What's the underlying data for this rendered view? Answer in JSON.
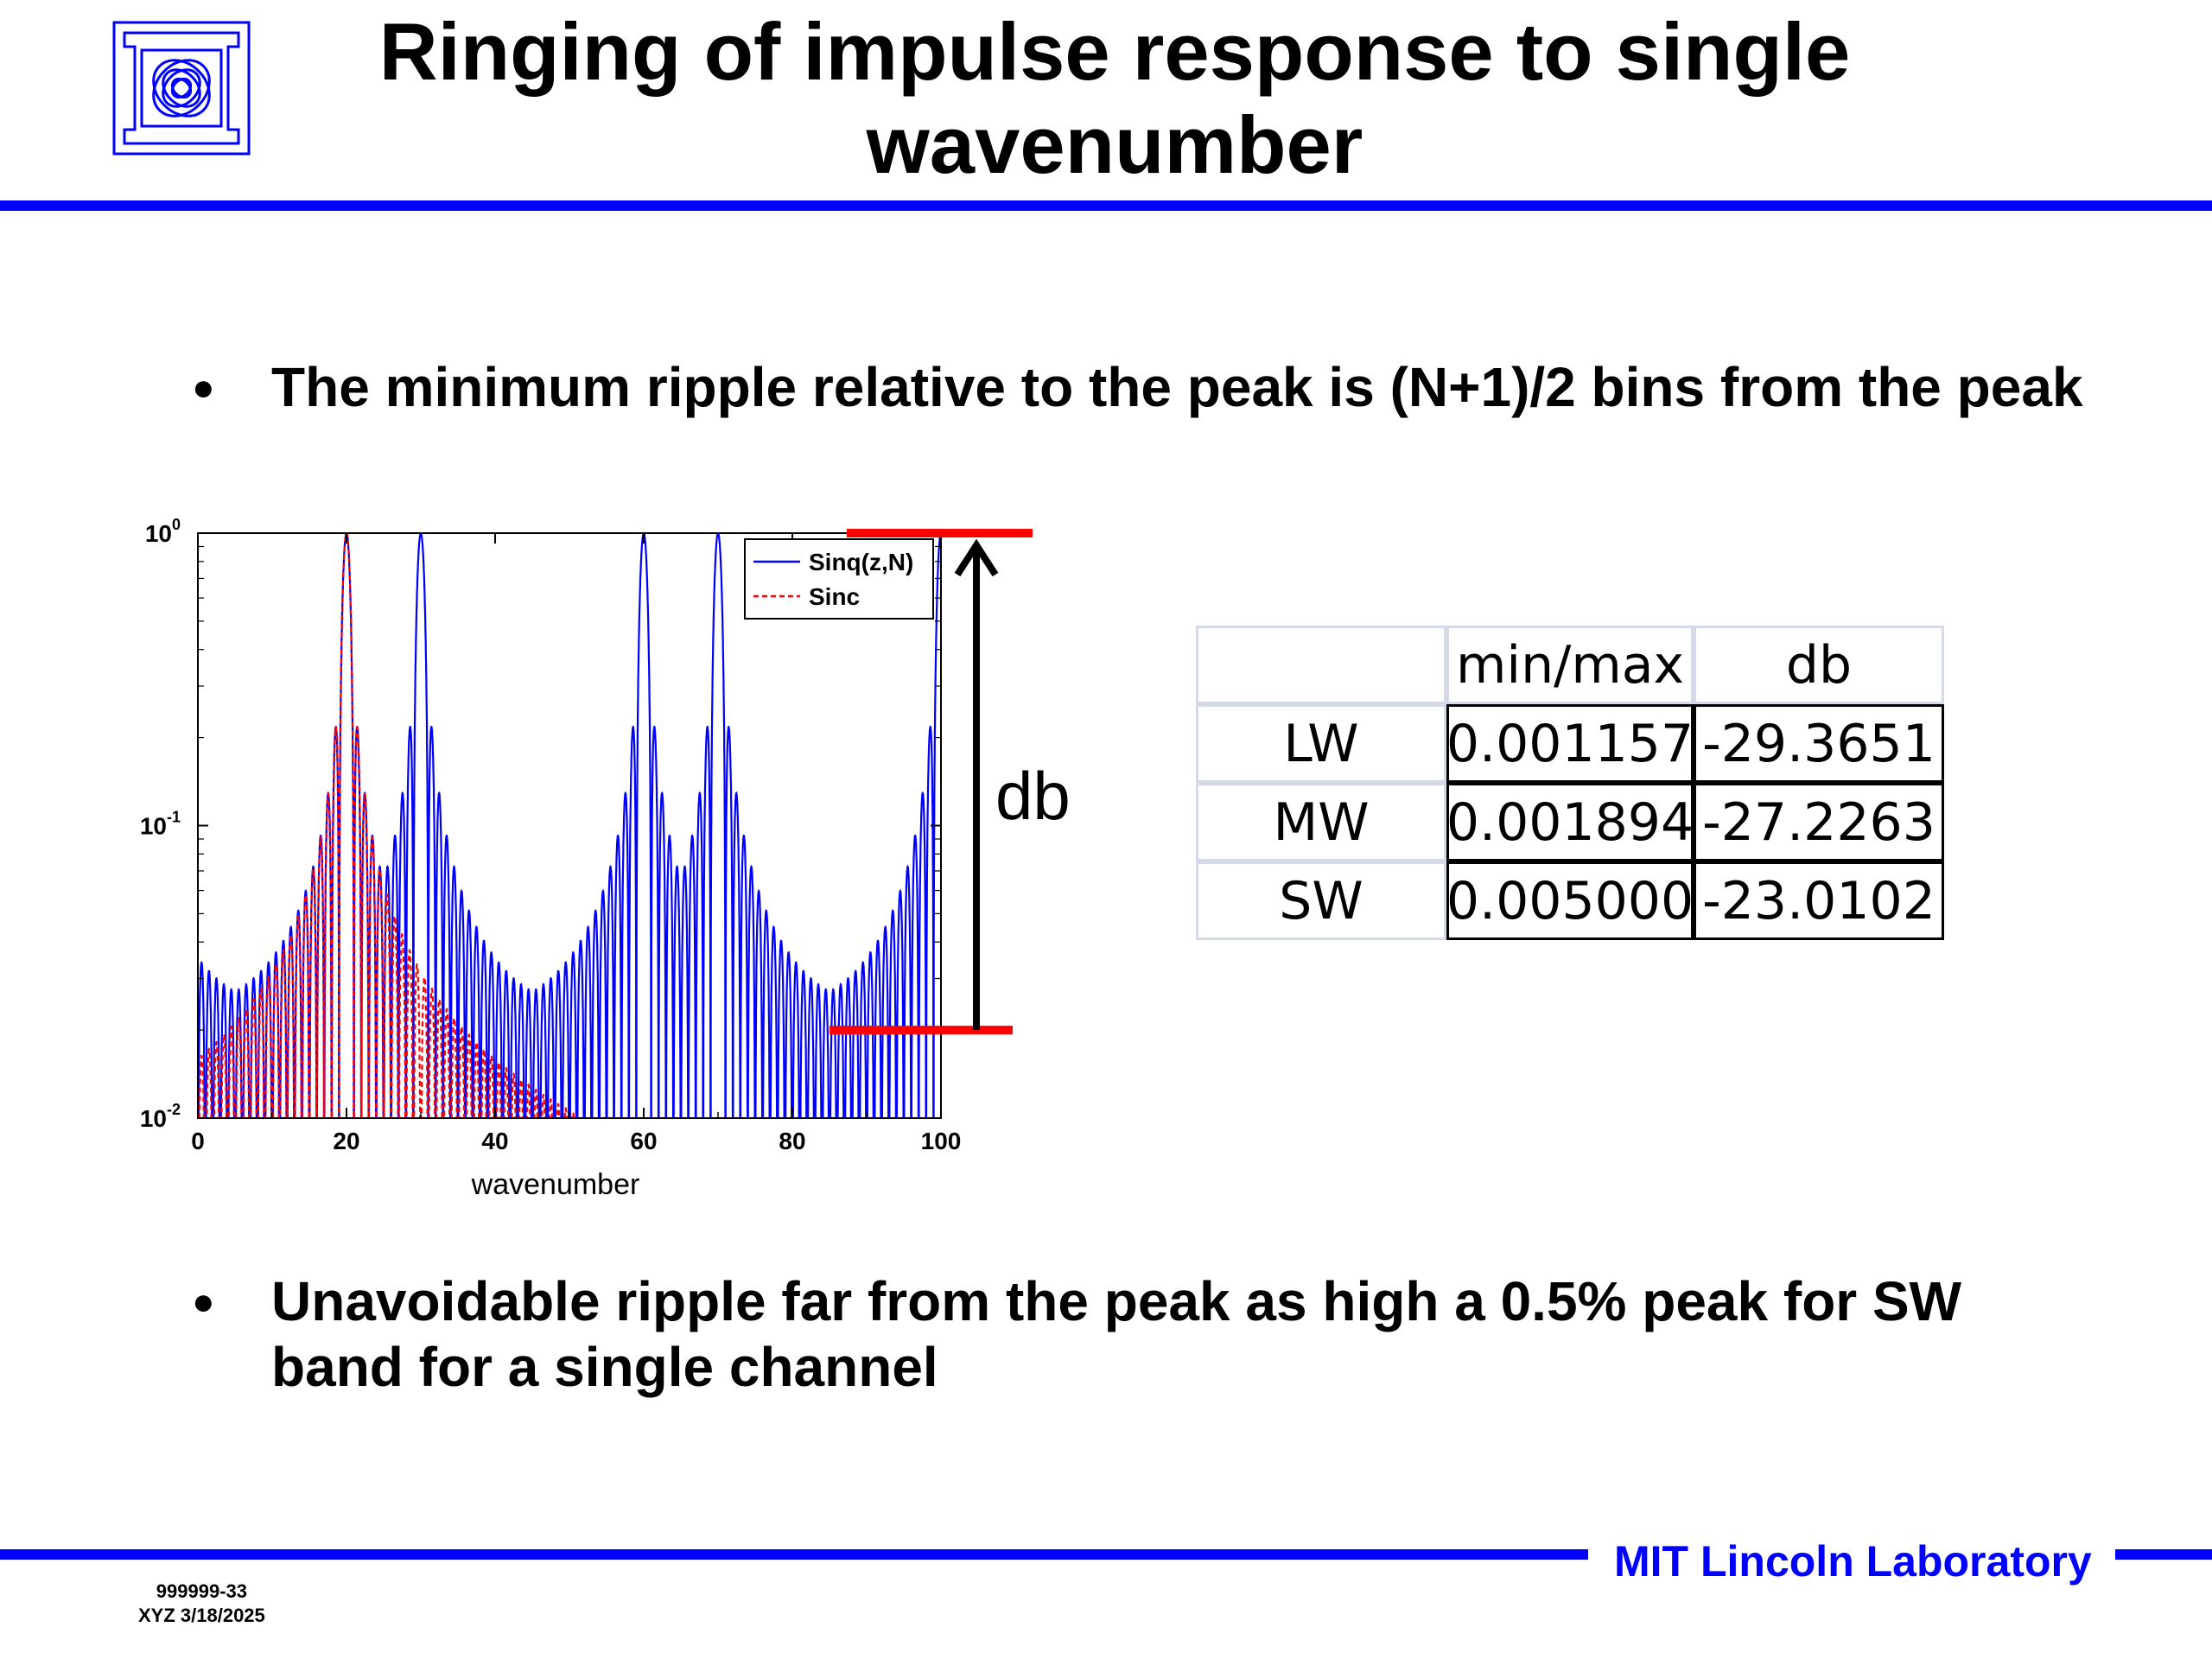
{
  "slide": {
    "title": "Ringing of impulse response to single wavenumber",
    "bullets": [
      "The minimum ripple relative to the peak is (N+1)/2 bins from the peak",
      "Unavoidable ripple far from the peak as high a 0.5% peak for SW band for a single channel"
    ],
    "annotation": "db",
    "footer": {
      "brand": "MIT Lincoln Laboratory",
      "id": "999999-33",
      "date": "XYZ 3/18/2025"
    },
    "colors": {
      "accent": "#0000ff",
      "marker": "#ff0000"
    },
    "logo_icon": "lincoln-lab-logo-icon"
  },
  "table": {
    "headers": [
      "",
      "min/max",
      "db"
    ],
    "rows": [
      [
        "LW",
        "0.001157",
        "-29.3651"
      ],
      [
        "MW",
        "0.001894",
        "-27.2263"
      ],
      [
        "SW",
        "0.005000",
        "-23.0102"
      ]
    ]
  },
  "chart_data": {
    "type": "line",
    "title": "",
    "xlabel": "wavenumber",
    "ylabel": "",
    "xlim": [
      0,
      100
    ],
    "ylim": [
      0.01,
      1
    ],
    "yscale": "log",
    "xticks": [
      "0",
      "20",
      "40",
      "60",
      "80",
      "100"
    ],
    "yticks": [
      {
        "base": "10",
        "exp": "0"
      },
      {
        "base": "10",
        "exp": "-1"
      },
      {
        "base": "10",
        "exp": "-2"
      }
    ],
    "legend_position": "top-right",
    "grid": false,
    "series": [
      {
        "name": "Sinq(z,N)",
        "color": "#0000ff",
        "style": "solid",
        "peaks": [
          20,
          70
        ]
      },
      {
        "name": "Sinc",
        "color": "#ff0000",
        "style": "dashed",
        "peaks": [
          20
        ]
      }
    ],
    "reference_levels": [
      1,
      0.02
    ]
  }
}
